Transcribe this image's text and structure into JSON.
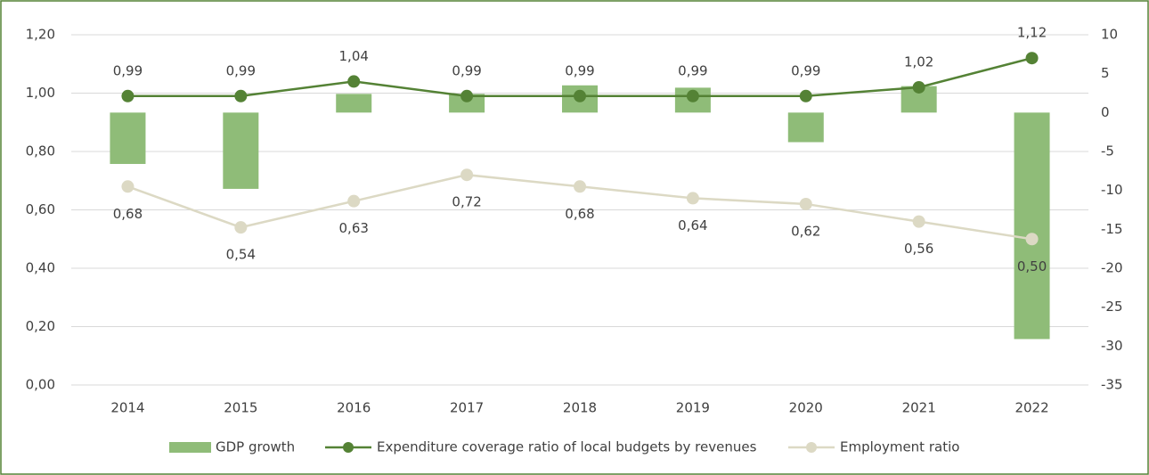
{
  "chart_data": {
    "type": "combo",
    "categories": [
      "2014",
      "2015",
      "2016",
      "2017",
      "2018",
      "2019",
      "2020",
      "2021",
      "2022"
    ],
    "series": [
      {
        "name": "GDP growth",
        "type": "bar",
        "axis": "y2",
        "color": "#8fbc78",
        "values": [
          -6.6,
          -9.8,
          2.4,
          2.4,
          3.5,
          3.2,
          -3.8,
          3.4,
          -29.1
        ]
      },
      {
        "name": "Expenditure coverage ratio of local budgets by revenues",
        "type": "line",
        "axis": "y",
        "color": "#548235",
        "values": [
          0.99,
          0.99,
          1.04,
          0.99,
          0.99,
          0.99,
          0.99,
          1.02,
          1.12
        ],
        "value_labels": [
          "0,99",
          "0,99",
          "1,04",
          "0,99",
          "0,99",
          "0,99",
          "0,99",
          "1,02",
          "1,12"
        ]
      },
      {
        "name": "Employment ratio",
        "type": "line",
        "axis": "y",
        "color": "#dcd9c4",
        "values": [
          0.68,
          0.54,
          0.63,
          0.72,
          0.68,
          0.64,
          0.62,
          0.56,
          0.5
        ],
        "value_labels": [
          "0,68",
          "0,54",
          "0,63",
          "0,72",
          "0,68",
          "0,64",
          "0,62",
          "0,56",
          "0,50"
        ]
      }
    ],
    "ylim": [
      0,
      1.2
    ],
    "yticks": [
      {
        "value": 0,
        "label": "0,00"
      },
      {
        "value": 0.2,
        "label": "0,20"
      },
      {
        "value": 0.4,
        "label": "0,40"
      },
      {
        "value": 0.6,
        "label": "0,60"
      },
      {
        "value": 0.8,
        "label": "0,80"
      },
      {
        "value": 1.0,
        "label": "1,00"
      },
      {
        "value": 1.2,
        "label": "1,20"
      }
    ],
    "y2lim": [
      -35,
      10
    ],
    "y2ticks": [
      -35,
      -30,
      -25,
      -20,
      -15,
      -10,
      -5,
      0,
      5,
      10
    ],
    "grid": true,
    "legend": "bottom"
  }
}
